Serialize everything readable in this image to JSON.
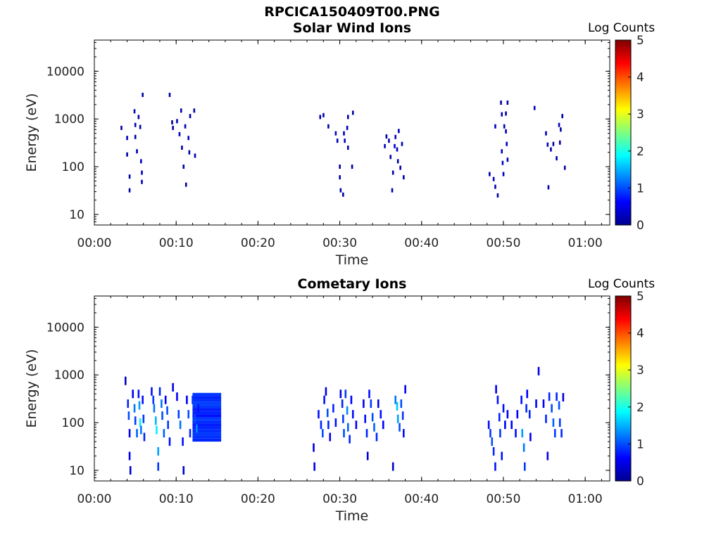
{
  "figure_title": "RPCICA150409T00.PNG",
  "colorbar": {
    "label": "Log Counts",
    "ticks": [
      "0",
      "1",
      "2",
      "3",
      "4",
      "5"
    ],
    "range": [
      0,
      5
    ],
    "colormap": "jet"
  },
  "axes_common": {
    "xlabel": "Time",
    "ylabel": "Energy (eV)",
    "x_ticks": [
      "00:00",
      "00:10",
      "00:20",
      "00:30",
      "00:40",
      "00:50",
      "01:00"
    ],
    "x_tick_minutes": [
      0,
      10,
      20,
      30,
      40,
      50,
      60
    ],
    "xlim_minutes": [
      0,
      63
    ],
    "y_ticks": [
      "10",
      "100",
      "1000",
      "10000"
    ],
    "y_tick_values": [
      10,
      100,
      1000,
      10000
    ],
    "ylim": [
      6,
      45000
    ],
    "yscale": "log"
  },
  "chart_data": [
    {
      "type": "heatmap",
      "title": "Solar Wind Ions",
      "xlabel": "Time",
      "ylabel": "Energy (eV)",
      "value_label": "Log Counts",
      "cells": [
        [
          3.3,
          650,
          0.2
        ],
        [
          4.0,
          400,
          0.3
        ],
        [
          4.0,
          180,
          0.2
        ],
        [
          4.3,
          62,
          0.2
        ],
        [
          4.3,
          32,
          0.2
        ],
        [
          4.9,
          1450,
          0.3
        ],
        [
          5.0,
          750,
          0.3
        ],
        [
          5.0,
          420,
          0.2
        ],
        [
          5.2,
          210,
          0.2
        ],
        [
          5.4,
          1100,
          0.2
        ],
        [
          5.6,
          680,
          0.2
        ],
        [
          5.7,
          130,
          0.3
        ],
        [
          5.8,
          75,
          0.3
        ],
        [
          5.8,
          48,
          0.3
        ],
        [
          5.9,
          3200,
          0.2
        ],
        [
          9.2,
          3200,
          0.2
        ],
        [
          9.5,
          850,
          0.2
        ],
        [
          9.6,
          650,
          0.2
        ],
        [
          10.1,
          900,
          0.3
        ],
        [
          10.4,
          480,
          0.3
        ],
        [
          10.6,
          1500,
          0.2
        ],
        [
          10.7,
          250,
          0.2
        ],
        [
          10.9,
          100,
          0.2
        ],
        [
          11.2,
          42,
          0.2
        ],
        [
          11.1,
          700,
          0.3
        ],
        [
          11.5,
          400,
          0.3
        ],
        [
          11.7,
          1150,
          0.2
        ],
        [
          11.6,
          200,
          0.2
        ],
        [
          12.2,
          1500,
          0.2
        ],
        [
          12.3,
          170,
          0.2
        ],
        [
          27.6,
          1100,
          0.2
        ],
        [
          28.0,
          1200,
          0.3
        ],
        [
          28.6,
          700,
          0.2
        ],
        [
          29.5,
          500,
          0.4
        ],
        [
          29.7,
          350,
          0.3
        ],
        [
          30.0,
          100,
          0.2
        ],
        [
          30.0,
          60,
          0.2
        ],
        [
          30.1,
          32,
          0.2
        ],
        [
          30.4,
          26,
          0.2
        ],
        [
          30.5,
          500,
          0.3
        ],
        [
          30.6,
          350,
          0.4
        ],
        [
          30.9,
          650,
          0.3
        ],
        [
          31.0,
          250,
          0.2
        ],
        [
          31.0,
          1100,
          0.2
        ],
        [
          31.5,
          100,
          0.2
        ],
        [
          31.6,
          1350,
          0.2
        ],
        [
          35.5,
          270,
          0.3
        ],
        [
          35.7,
          430,
          0.2
        ],
        [
          36.0,
          350,
          0.3
        ],
        [
          36.2,
          160,
          0.2
        ],
        [
          36.5,
          75,
          0.2
        ],
        [
          36.7,
          270,
          0.4
        ],
        [
          36.8,
          420,
          0.3
        ],
        [
          37.0,
          230,
          0.3
        ],
        [
          37.2,
          560,
          0.3
        ],
        [
          37.1,
          130,
          0.2
        ],
        [
          37.4,
          95,
          0.2
        ],
        [
          37.6,
          300,
          0.3
        ],
        [
          37.8,
          60,
          0.2
        ],
        [
          36.4,
          32,
          0.2
        ],
        [
          48.3,
          70,
          0.2
        ],
        [
          48.8,
          55,
          0.3
        ],
        [
          49.0,
          38,
          0.3
        ],
        [
          49.0,
          700,
          0.3
        ],
        [
          49.3,
          25,
          0.2
        ],
        [
          49.7,
          2200,
          0.2
        ],
        [
          49.8,
          1250,
          0.2
        ],
        [
          49.8,
          210,
          0.4
        ],
        [
          49.9,
          120,
          0.4
        ],
        [
          50.0,
          70,
          0.3
        ],
        [
          50.1,
          700,
          0.2
        ],
        [
          50.3,
          1300,
          0.2
        ],
        [
          50.3,
          550,
          0.3
        ],
        [
          50.4,
          300,
          0.3
        ],
        [
          50.5,
          140,
          0.2
        ],
        [
          50.5,
          2200,
          0.2
        ],
        [
          53.8,
          1700,
          0.3
        ],
        [
          55.2,
          500,
          0.3
        ],
        [
          55.4,
          290,
          0.3
        ],
        [
          55.8,
          230,
          0.2
        ],
        [
          56.1,
          300,
          0.2
        ],
        [
          56.5,
          150,
          0.2
        ],
        [
          56.8,
          750,
          0.3
        ],
        [
          57.0,
          600,
          0.2
        ],
        [
          56.9,
          320,
          0.2
        ],
        [
          57.2,
          1150,
          0.2
        ],
        [
          57.5,
          95,
          0.2
        ],
        [
          55.5,
          37,
          0.2
        ]
      ]
    },
    {
      "type": "heatmap",
      "title": "Cometary Ions",
      "xlabel": "Time",
      "ylabel": "Energy (eV)",
      "value_label": "Log Counts",
      "cells": [
        [
          3.8,
          750,
          0.3
        ],
        [
          4.1,
          250,
          0.8
        ],
        [
          4.2,
          140,
          1.0
        ],
        [
          4.3,
          60,
          0.6
        ],
        [
          4.3,
          20,
          0.6
        ],
        [
          4.4,
          10,
          0.4
        ],
        [
          4.7,
          400,
          0.6
        ],
        [
          4.9,
          200,
          1.2
        ],
        [
          5.0,
          110,
          0.9
        ],
        [
          5.2,
          60,
          1.1
        ],
        [
          5.4,
          400,
          0.7
        ],
        [
          5.5,
          230,
          1.4
        ],
        [
          5.6,
          100,
          1.8
        ],
        [
          5.7,
          70,
          1.2
        ],
        [
          5.9,
          300,
          0.7
        ],
        [
          6.0,
          120,
          0.9
        ],
        [
          6.1,
          50,
          0.8
        ],
        [
          7.0,
          450,
          0.7
        ],
        [
          7.2,
          300,
          0.9
        ],
        [
          7.3,
          200,
          1.2
        ],
        [
          7.5,
          110,
          1.5
        ],
        [
          7.6,
          70,
          1.8
        ],
        [
          7.8,
          25,
          1.4
        ],
        [
          7.8,
          12,
          0.9
        ],
        [
          8.0,
          450,
          0.8
        ],
        [
          8.2,
          250,
          1.2
        ],
        [
          8.3,
          140,
          1.0
        ],
        [
          8.5,
          60,
          1.1
        ],
        [
          8.7,
          300,
          0.6
        ],
        [
          8.9,
          180,
          1.0
        ],
        [
          9.0,
          90,
          0.9
        ],
        [
          9.2,
          40,
          0.7
        ],
        [
          9.6,
          550,
          0.5
        ],
        [
          10.1,
          350,
          0.6
        ],
        [
          10.3,
          150,
          0.9
        ],
        [
          10.5,
          90,
          1.2
        ],
        [
          10.8,
          40,
          0.7
        ],
        [
          10.9,
          10,
          0.4
        ],
        [
          11.3,
          300,
          0.6
        ],
        [
          11.5,
          150,
          1.0
        ],
        [
          11.7,
          60,
          0.8
        ],
        [
          12.0,
          300,
          0.9
        ],
        [
          12.3,
          120,
          1.0
        ],
        [
          12.5,
          75,
          1.3
        ],
        [
          12.7,
          200,
          0.7
        ],
        [
          26.8,
          30,
          0.5
        ],
        [
          26.9,
          12,
          0.5
        ],
        [
          27.4,
          150,
          0.7
        ],
        [
          27.7,
          90,
          0.8
        ],
        [
          27.9,
          60,
          1.0
        ],
        [
          28.1,
          300,
          0.7
        ],
        [
          28.3,
          450,
          0.5
        ],
        [
          28.5,
          160,
          1.0
        ],
        [
          28.6,
          90,
          0.8
        ],
        [
          28.8,
          50,
          0.6
        ],
        [
          29.2,
          200,
          0.8
        ],
        [
          29.5,
          100,
          0.7
        ],
        [
          30.1,
          400,
          0.5
        ],
        [
          30.3,
          250,
          0.8
        ],
        [
          30.4,
          120,
          0.9
        ],
        [
          30.5,
          60,
          1.0
        ],
        [
          30.7,
          400,
          0.9
        ],
        [
          30.9,
          180,
          1.3
        ],
        [
          31.0,
          80,
          1.1
        ],
        [
          31.2,
          45,
          0.8
        ],
        [
          31.4,
          300,
          0.6
        ],
        [
          31.6,
          150,
          0.7
        ],
        [
          32.0,
          90,
          0.6
        ],
        [
          32.9,
          250,
          0.6
        ],
        [
          33.1,
          120,
          0.7
        ],
        [
          33.3,
          60,
          0.8
        ],
        [
          33.4,
          20,
          0.5
        ],
        [
          33.6,
          400,
          0.7
        ],
        [
          33.8,
          250,
          0.9
        ],
        [
          34.0,
          130,
          1.0
        ],
        [
          34.2,
          80,
          1.1
        ],
        [
          34.5,
          50,
          0.8
        ],
        [
          34.7,
          250,
          0.6
        ],
        [
          35.0,
          150,
          0.7
        ],
        [
          35.3,
          90,
          0.6
        ],
        [
          36.8,
          300,
          1.2
        ],
        [
          37.0,
          220,
          1.6
        ],
        [
          37.1,
          120,
          1.4
        ],
        [
          37.3,
          80,
          1.0
        ],
        [
          37.5,
          250,
          1.0
        ],
        [
          37.7,
          140,
          0.9
        ],
        [
          37.8,
          60,
          0.7
        ],
        [
          38.0,
          500,
          0.6
        ],
        [
          36.5,
          12,
          0.4
        ],
        [
          48.2,
          90,
          0.7
        ],
        [
          48.4,
          60,
          0.9
        ],
        [
          48.6,
          40,
          1.0
        ],
        [
          48.8,
          25,
          0.8
        ],
        [
          49.0,
          12,
          0.7
        ],
        [
          49.1,
          500,
          0.6
        ],
        [
          49.3,
          300,
          0.7
        ],
        [
          49.5,
          130,
          0.8
        ],
        [
          49.6,
          60,
          0.9
        ],
        [
          49.8,
          20,
          0.7
        ],
        [
          50.0,
          200,
          0.7
        ],
        [
          50.2,
          90,
          0.6
        ],
        [
          50.5,
          150,
          0.6
        ],
        [
          51.0,
          90,
          0.6
        ],
        [
          51.5,
          60,
          0.7
        ],
        [
          51.7,
          150,
          0.6
        ],
        [
          52.2,
          300,
          0.7
        ],
        [
          52.3,
          60,
          1.4
        ],
        [
          52.5,
          30,
          1.2
        ],
        [
          52.6,
          12,
          0.9
        ],
        [
          52.8,
          200,
          0.8
        ],
        [
          52.9,
          400,
          0.6
        ],
        [
          53.2,
          150,
          0.8
        ],
        [
          53.3,
          50,
          0.6
        ],
        [
          54.0,
          250,
          0.6
        ],
        [
          54.3,
          1200,
          0.5
        ],
        [
          54.9,
          250,
          0.6
        ],
        [
          55.2,
          120,
          0.8
        ],
        [
          55.4,
          20,
          0.6
        ],
        [
          55.6,
          350,
          0.8
        ],
        [
          55.9,
          200,
          1.0
        ],
        [
          56.1,
          100,
          1.1
        ],
        [
          56.3,
          60,
          0.9
        ],
        [
          56.5,
          350,
          0.8
        ],
        [
          56.8,
          230,
          1.0
        ],
        [
          56.9,
          100,
          0.9
        ],
        [
          57.1,
          60,
          0.8
        ],
        [
          57.3,
          340,
          0.5
        ]
      ],
      "blocks": [
        {
          "x_start": 12.0,
          "x_end": 15.5,
          "y_low": 40,
          "y_high": 420,
          "levels": [
            0.8,
            0.85,
            0.9,
            0.85,
            0.8,
            0.75,
            0.85,
            0.9,
            0.7,
            0.8,
            0.75,
            0.9,
            0.95,
            0.85,
            0.8,
            0.9
          ]
        }
      ]
    }
  ]
}
